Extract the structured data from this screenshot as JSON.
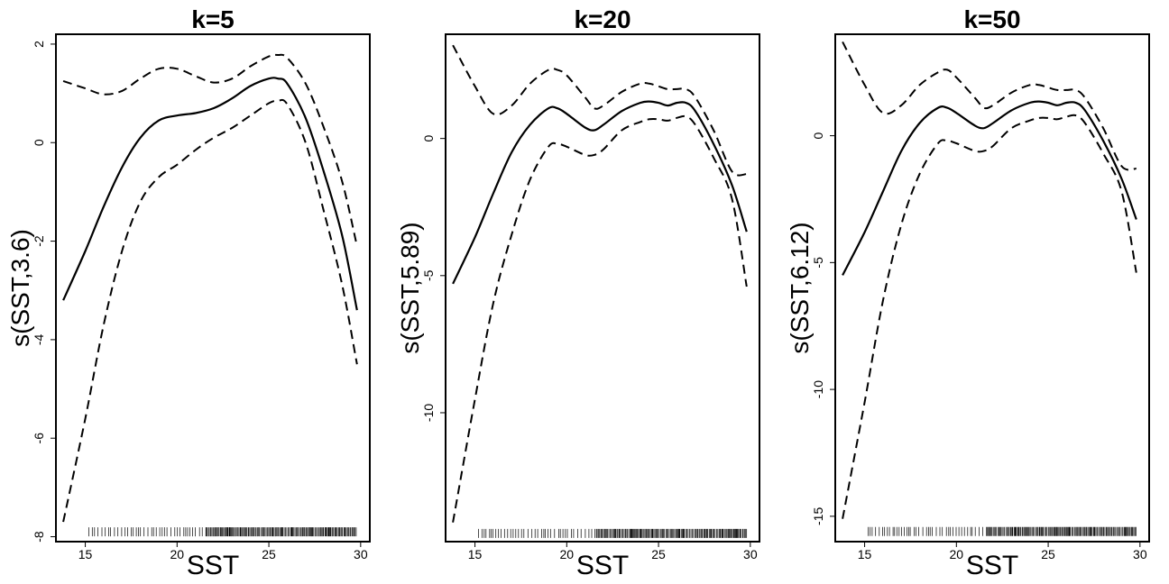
{
  "chart_data": [
    {
      "type": "line",
      "title": "k=5",
      "xlabel": "SST",
      "ylabel": "s(SST,3.6)",
      "xlim": [
        13.4,
        30.5
      ],
      "ylim": [
        -8.1,
        2.2
      ],
      "xticks": [
        15,
        20,
        25,
        30
      ],
      "yticks": [
        -8,
        -6,
        -4,
        -2,
        0,
        2
      ],
      "x": [
        13.8,
        15,
        16,
        17,
        18,
        19,
        20,
        21,
        22,
        23,
        24,
        25,
        25.5,
        26,
        27,
        28,
        29,
        29.8
      ],
      "series": [
        {
          "role": "fit",
          "values": [
            -3.2,
            -2.2,
            -1.3,
            -0.5,
            0.1,
            0.45,
            0.55,
            0.6,
            0.7,
            0.9,
            1.15,
            1.3,
            1.3,
            1.2,
            0.5,
            -0.6,
            -1.9,
            -3.4
          ]
        },
        {
          "role": "upper",
          "values": [
            1.25,
            1.1,
            0.98,
            1.05,
            1.3,
            1.5,
            1.5,
            1.35,
            1.22,
            1.3,
            1.55,
            1.75,
            1.78,
            1.72,
            1.2,
            0.3,
            -0.8,
            -2.1
          ]
        },
        {
          "role": "lower",
          "values": [
            -7.7,
            -5.6,
            -3.7,
            -2.2,
            -1.2,
            -0.7,
            -0.45,
            -0.15,
            0.1,
            0.3,
            0.55,
            0.8,
            0.85,
            0.78,
            0.0,
            -1.4,
            -2.9,
            -4.5
          ]
        }
      ],
      "rug": {
        "y": -7.9,
        "dense_from": 21.5,
        "x_start": 15.2,
        "x_end": 29.8
      }
    },
    {
      "type": "line",
      "title": "k=20",
      "xlabel": "SST",
      "ylabel": "s(SST,5.89)",
      "xlim": [
        13.4,
        30.5
      ],
      "ylim": [
        -14.7,
        3.8
      ],
      "xticks": [
        15,
        20,
        25,
        30
      ],
      "yticks": [
        -10,
        -5,
        0
      ],
      "x": [
        13.8,
        15,
        16,
        17,
        18,
        19,
        19.5,
        20,
        21,
        21.5,
        22,
        23,
        24,
        24.5,
        25,
        25.5,
        26,
        26.5,
        27,
        28,
        29,
        29.8
      ],
      "series": [
        {
          "role": "fit",
          "values": [
            -5.3,
            -3.6,
            -2.0,
            -0.5,
            0.5,
            1.1,
            1.1,
            0.9,
            0.4,
            0.3,
            0.5,
            1.0,
            1.3,
            1.35,
            1.3,
            1.2,
            1.3,
            1.3,
            1.0,
            -0.2,
            -1.7,
            -3.4
          ]
        },
        {
          "role": "upper",
          "values": [
            3.4,
            1.9,
            0.9,
            1.2,
            2.0,
            2.5,
            2.5,
            2.3,
            1.5,
            1.1,
            1.2,
            1.7,
            2.0,
            2.0,
            1.9,
            1.8,
            1.8,
            1.8,
            1.5,
            0.3,
            -1.2,
            -1.3
          ]
        },
        {
          "role": "lower",
          "values": [
            -14.0,
            -9.5,
            -6.0,
            -3.5,
            -1.5,
            -0.3,
            -0.2,
            -0.3,
            -0.6,
            -0.6,
            -0.4,
            0.3,
            0.6,
            0.7,
            0.7,
            0.65,
            0.75,
            0.8,
            0.5,
            -0.7,
            -2.2,
            -5.4
          ]
        }
      ],
      "rug": {
        "y": -14.4,
        "dense_from": 21.5,
        "x_start": 15.2,
        "x_end": 29.8
      }
    },
    {
      "type": "line",
      "title": "k=50",
      "xlabel": "SST",
      "ylabel": "s(SST,6.12)",
      "xlim": [
        13.4,
        30.5
      ],
      "ylim": [
        -16.0,
        4.0
      ],
      "xticks": [
        15,
        20,
        25,
        30
      ],
      "yticks": [
        -15,
        -10,
        -5,
        0
      ],
      "x": [
        13.8,
        15,
        16,
        17,
        18,
        19,
        19.5,
        20,
        21,
        21.5,
        22,
        23,
        24,
        24.5,
        25,
        25.5,
        26,
        26.5,
        27,
        28,
        29,
        29.8
      ],
      "series": [
        {
          "role": "fit",
          "values": [
            -5.5,
            -3.8,
            -2.2,
            -0.6,
            0.5,
            1.1,
            1.1,
            0.9,
            0.4,
            0.3,
            0.5,
            1.0,
            1.3,
            1.35,
            1.3,
            1.2,
            1.3,
            1.3,
            1.0,
            -0.2,
            -1.7,
            -3.3
          ]
        },
        {
          "role": "upper",
          "values": [
            3.7,
            2.0,
            0.9,
            1.2,
            2.0,
            2.5,
            2.6,
            2.3,
            1.5,
            1.1,
            1.2,
            1.7,
            2.0,
            2.0,
            1.9,
            1.8,
            1.8,
            1.8,
            1.5,
            0.3,
            -1.2,
            -1.3
          ]
        },
        {
          "role": "lower",
          "values": [
            -15.1,
            -10.5,
            -6.5,
            -3.5,
            -1.5,
            -0.3,
            -0.2,
            -0.3,
            -0.6,
            -0.6,
            -0.4,
            0.3,
            0.6,
            0.7,
            0.7,
            0.65,
            0.75,
            0.8,
            0.5,
            -0.7,
            -2.2,
            -5.4
          ]
        }
      ],
      "rug": {
        "y": -15.6,
        "dense_from": 21.5,
        "x_start": 15.2,
        "x_end": 29.8
      }
    }
  ]
}
